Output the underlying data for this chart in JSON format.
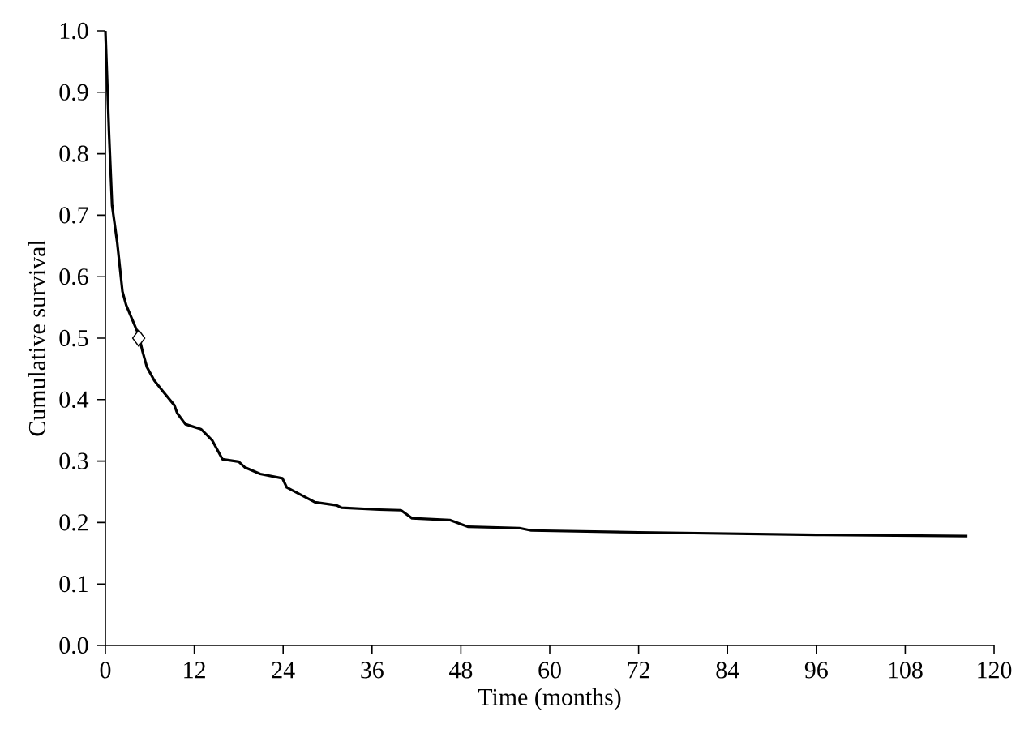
{
  "chart_data": {
    "type": "line",
    "xlabel": "Time (months)",
    "ylabel": "Cumulative survival",
    "xlim": [
      0,
      120
    ],
    "ylim": [
      0,
      1
    ],
    "xticks": [
      0,
      12,
      24,
      36,
      48,
      60,
      72,
      84,
      96,
      108,
      120
    ],
    "yticks": [
      {
        "value": 0,
        "label": "0.0"
      },
      {
        "value": 0.1,
        "label": "0.1"
      },
      {
        "value": 0.2,
        "label": "0.2"
      },
      {
        "value": 0.3,
        "label": "0.3"
      },
      {
        "value": 0.4,
        "label": "0.4"
      },
      {
        "value": 0.5,
        "label": "0.5"
      },
      {
        "value": 0.6,
        "label": "0.6"
      },
      {
        "value": 0.7,
        "label": "0.7"
      },
      {
        "value": 0.8,
        "label": "0.8"
      },
      {
        "value": 0.9,
        "label": "0.9"
      },
      {
        "value": 1,
        "label": "1.0"
      }
    ],
    "grid": false,
    "marker": "none",
    "line_style": "solid",
    "series": [
      {
        "color": "#000000",
        "x": [
          0,
          0.5,
          0.9,
          1.6,
          2.3,
          2.8,
          4.5,
          5.0,
          5.6,
          6.6,
          7.8,
          9.3,
          9.7,
          10.8,
          12.9,
          14.4,
          15.8,
          18.0,
          18.8,
          20.9,
          23.9,
          24.5,
          28.3,
          31.2,
          31.9,
          37.0,
          39.9,
          41.4,
          46.5,
          49.0,
          55.9,
          57.5,
          72,
          96,
          116.4
        ],
        "values": [
          1.0,
          0.83,
          0.716,
          0.655,
          0.576,
          0.554,
          0.505,
          0.479,
          0.453,
          0.431,
          0.413,
          0.391,
          0.378,
          0.36,
          0.352,
          0.334,
          0.303,
          0.299,
          0.29,
          0.279,
          0.272,
          0.257,
          0.233,
          0.228,
          0.224,
          0.221,
          0.22,
          0.207,
          0.204,
          0.193,
          0.191,
          0.187,
          0.184,
          0.18,
          0.178
        ]
      },
      {
        "type": "scatter",
        "color": "#000000",
        "marker": "diamond",
        "x": [
          4.5
        ],
        "values": [
          0.5
        ]
      }
    ]
  }
}
